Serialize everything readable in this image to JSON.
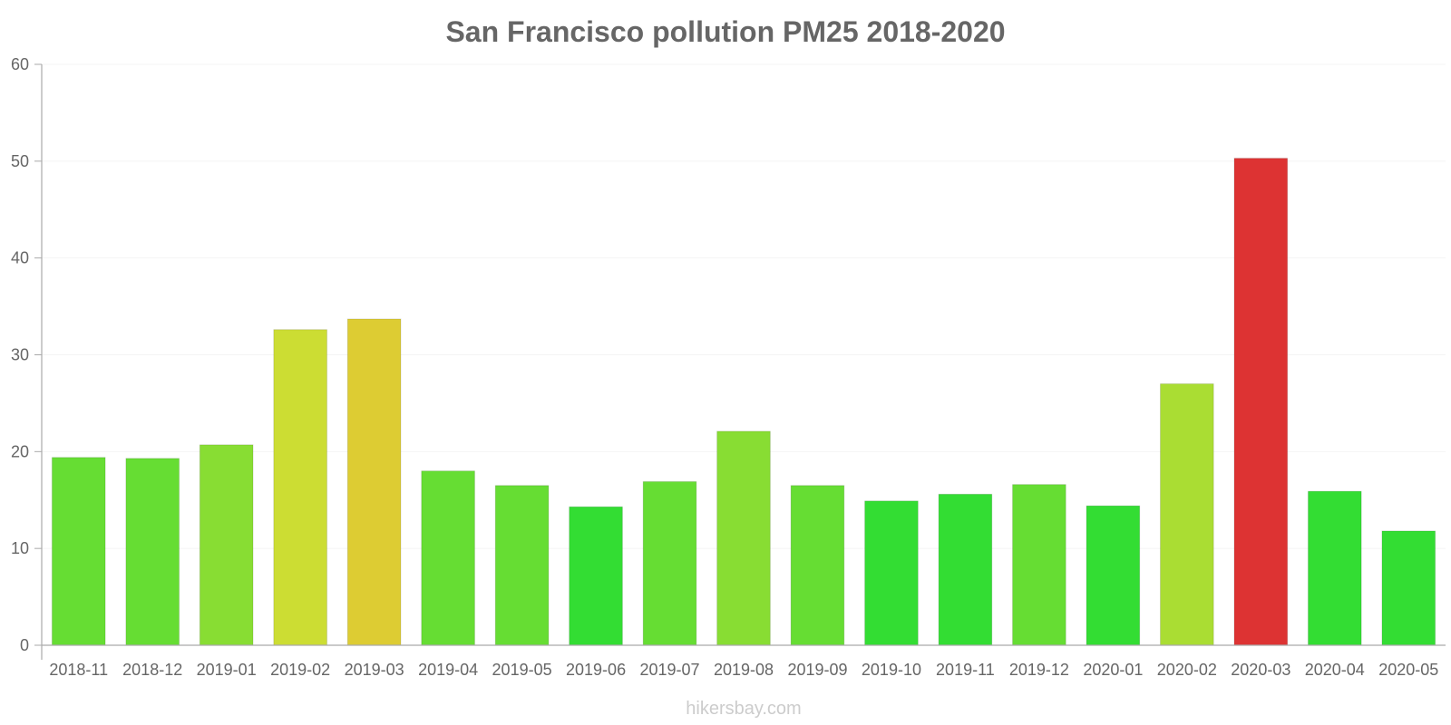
{
  "chart_data": {
    "type": "bar",
    "title": "San Francisco pollution PM25 2018-2020",
    "xlabel": "",
    "ylabel": "",
    "ylim": [
      0,
      60
    ],
    "yticks": [
      0,
      10,
      20,
      30,
      40,
      50,
      60
    ],
    "grid": true,
    "categories": [
      "2018-11",
      "2018-12",
      "2019-01",
      "2019-02",
      "2019-03",
      "2019-04",
      "2019-05",
      "2019-06",
      "2019-07",
      "2019-08",
      "2019-09",
      "2019-10",
      "2019-11",
      "2019-12",
      "2020-01",
      "2020-02",
      "2020-03",
      "2020-04",
      "2020-05"
    ],
    "values": [
      19.4,
      19.3,
      20.7,
      32.6,
      33.7,
      18.0,
      16.5,
      14.3,
      16.9,
      22.1,
      16.5,
      14.9,
      15.6,
      16.6,
      14.4,
      27.0,
      50.3,
      15.9,
      11.8
    ],
    "colors": [
      "#66dd33",
      "#66dd33",
      "#88dd33",
      "#ccdd33",
      "#ddcc33",
      "#66dd33",
      "#66dd33",
      "#33dd33",
      "#66dd33",
      "#88dd33",
      "#66dd33",
      "#33dd33",
      "#33dd33",
      "#66dd33",
      "#33dd33",
      "#aadd33",
      "#dd3333",
      "#33dd33",
      "#33dd33"
    ]
  },
  "watermark": "hikersbay.com"
}
